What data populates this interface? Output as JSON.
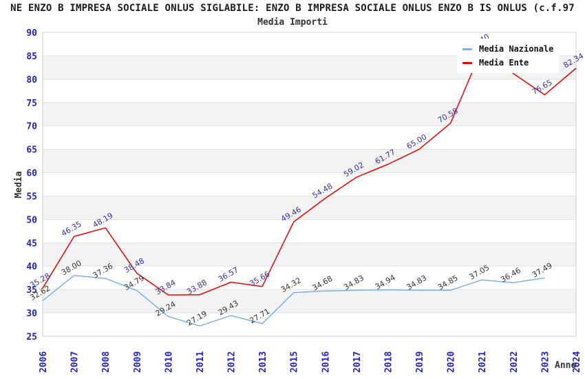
{
  "header": {
    "title": "NE ENZO B IMPRESA SOCIALE ONLUS SIGLABILE: ENZO B IMPRESA SOCIALE ONLUS ENZO B IS ONLUS (c.f.97"
  },
  "chart": {
    "subtitle": "Media Importi"
  },
  "legend": {
    "items": [
      {
        "label": "Media Nazionale",
        "color": "#7db0e0"
      },
      {
        "label": "Media Ente",
        "color": "#ee0000"
      }
    ]
  },
  "chart_data": {
    "type": "line",
    "title": "Media Importi",
    "xlabel": "Anno",
    "ylabel": "Media",
    "categories": [
      "2006",
      "2007",
      "2008",
      "2009",
      "2010",
      "2011",
      "2012",
      "2013",
      "2015",
      "2016",
      "2017",
      "2018",
      "2019",
      "2020",
      "2021",
      "2022",
      "2023",
      "2024"
    ],
    "series": [
      {
        "name": "Media Nazionale",
        "color": "#7db0e0",
        "label_color": "#333333",
        "values": [
          32.62,
          38.0,
          37.36,
          34.79,
          29.24,
          27.19,
          29.43,
          27.71,
          34.32,
          34.68,
          34.83,
          34.94,
          34.83,
          34.85,
          37.05,
          36.46,
          37.49,
          null
        ],
        "labels": [
          "32.62",
          "38.00",
          "37.36",
          "34.79",
          "29.24",
          "27.19",
          "29.43",
          "27.71",
          "34.32",
          "34.68",
          "34.83",
          "34.94",
          "34.83",
          "34.85",
          "37.05",
          "36.46",
          "37.49",
          ""
        ]
      },
      {
        "name": "Media Ente",
        "color": "#ee0000",
        "label_color": "#333399",
        "values": [
          35.28,
          46.35,
          48.19,
          38.48,
          33.84,
          33.88,
          36.57,
          35.66,
          49.46,
          54.48,
          59.02,
          61.77,
          65.0,
          70.58,
          86.4,
          81.2,
          76.65,
          82.34
        ],
        "labels": [
          "35.28",
          "46.35",
          "48.19",
          "38.48",
          "33.84",
          "33.88",
          "36.57",
          "35.66",
          "49.46",
          "54.48",
          "59.02",
          "61.77",
          "65.00",
          "70.58",
          "86.40",
          "81.20",
          "76.65",
          "82.34"
        ]
      }
    ],
    "ylim": [
      25,
      90
    ],
    "ytick_step": 5,
    "grid": "horizontal-lines-with-alternating-bands",
    "legend_position": "top-right",
    "colors": {
      "tick_label": "#2222cc",
      "band": "#f3f3f3",
      "gridline": "#e2e2e2",
      "plot_border": "#cccccc"
    }
  }
}
